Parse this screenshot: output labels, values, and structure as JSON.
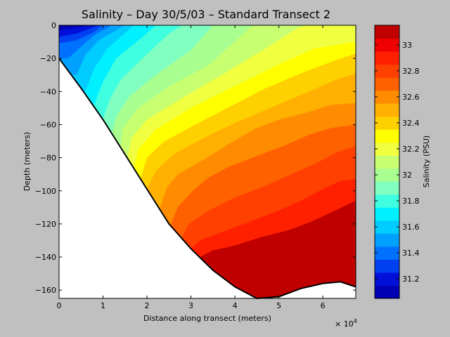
{
  "chart_data": {
    "type": "heatmap",
    "subtype": "filled-contour",
    "title": "Salinity – Day 30/5/03 – Standard Transect 2",
    "xlabel": "Distance along transect (meters)",
    "ylabel": "Depth (meters)",
    "x_multiplier": "× 10",
    "x_multiplier_exp": "4",
    "xlim": [
      0,
      6.75
    ],
    "ylim": [
      -165,
      0
    ],
    "x_ticks": [
      "0",
      "1",
      "2",
      "3",
      "4",
      "5",
      "6"
    ],
    "y_ticks": [
      "0",
      "−20",
      "−40",
      "−60",
      "−80",
      "−100",
      "−120",
      "−140",
      "−160"
    ],
    "colorbar": {
      "label": "Salinity (PSU)",
      "range": [
        31.05,
        33.15
      ],
      "tick_labels": [
        "31.2",
        "31.4",
        "31.6",
        "31.8",
        "32",
        "32.2",
        "32.4",
        "32.6",
        "32.8",
        "33"
      ],
      "levels": [
        31.05,
        31.15,
        31.25,
        31.35,
        31.45,
        31.55,
        31.65,
        31.75,
        31.85,
        31.95,
        32.05,
        32.15,
        32.25,
        32.35,
        32.45,
        32.55,
        32.65,
        32.75,
        32.85,
        32.95,
        33.05,
        33.15
      ],
      "colors": [
        "#0000b4",
        "#0010d8",
        "#0040f0",
        "#0070ff",
        "#00a0ff",
        "#00ccff",
        "#00f0ff",
        "#40ffe0",
        "#80ffc0",
        "#a8ff90",
        "#c8ff70",
        "#f0ff40",
        "#ffff00",
        "#ffd000",
        "#ffb000",
        "#ff8c00",
        "#ff6000",
        "#ff4000",
        "#ff2000",
        "#f00000",
        "#c00000"
      ]
    },
    "bottom_profile": [
      {
        "x": 0,
        "y": -20
      },
      {
        "x": 0.5,
        "y": -38
      },
      {
        "x": 1.0,
        "y": -57
      },
      {
        "x": 1.5,
        "y": -78
      },
      {
        "x": 2.0,
        "y": -99
      },
      {
        "x": 2.5,
        "y": -120
      },
      {
        "x": 3.0,
        "y": -135
      },
      {
        "x": 3.5,
        "y": -148
      },
      {
        "x": 4.0,
        "y": -158
      },
      {
        "x": 4.5,
        "y": -165
      },
      {
        "x": 5.0,
        "y": -164
      },
      {
        "x": 5.5,
        "y": -159
      },
      {
        "x": 6.0,
        "y": -156
      },
      {
        "x": 6.4,
        "y": -155
      },
      {
        "x": 6.75,
        "y": -158
      }
    ],
    "contour_lines": [
      {
        "level": 31.15,
        "points": [
          {
            "x": 0,
            "y": -3
          },
          {
            "x": 0.5,
            "y": -1
          },
          {
            "x": 0.7,
            "y": 0
          }
        ]
      },
      {
        "level": 31.25,
        "points": [
          {
            "x": 0,
            "y": -7
          },
          {
            "x": 0.4,
            "y": -5
          },
          {
            "x": 0.9,
            "y": 0
          }
        ]
      },
      {
        "level": 31.35,
        "points": [
          {
            "x": 0,
            "y": -11
          },
          {
            "x": 0.4,
            "y": -9
          },
          {
            "x": 0.8,
            "y": -4
          },
          {
            "x": 1.0,
            "y": 0
          }
        ]
      },
      {
        "level": 31.45,
        "points": [
          {
            "x": 0.2,
            "y": -20
          },
          {
            "x": 0.5,
            "y": -13
          },
          {
            "x": 0.8,
            "y": -6
          },
          {
            "x": 1.2,
            "y": 0
          }
        ]
      },
      {
        "level": 31.55,
        "points": [
          {
            "x": 0.4,
            "y": -30
          },
          {
            "x": 0.6,
            "y": -18
          },
          {
            "x": 0.9,
            "y": -9
          },
          {
            "x": 1.5,
            "y": 0
          }
        ]
      },
      {
        "level": 31.65,
        "points": [
          {
            "x": 0.6,
            "y": -40
          },
          {
            "x": 0.8,
            "y": -26
          },
          {
            "x": 1.1,
            "y": -14
          },
          {
            "x": 1.7,
            "y": 0
          }
        ]
      },
      {
        "level": 31.75,
        "points": [
          {
            "x": 0.8,
            "y": -48
          },
          {
            "x": 1.0,
            "y": -34
          },
          {
            "x": 1.3,
            "y": -20
          },
          {
            "x": 1.9,
            "y": -7
          },
          {
            "x": 2.2,
            "y": 0
          }
        ]
      },
      {
        "level": 31.85,
        "points": [
          {
            "x": 1.0,
            "y": -57
          },
          {
            "x": 1.15,
            "y": -45
          },
          {
            "x": 1.4,
            "y": -33
          },
          {
            "x": 1.9,
            "y": -20
          },
          {
            "x": 2.5,
            "y": -5
          },
          {
            "x": 2.8,
            "y": 0
          }
        ]
      },
      {
        "level": 31.95,
        "points": [
          {
            "x": 1.2,
            "y": -66
          },
          {
            "x": 1.3,
            "y": -55
          },
          {
            "x": 1.6,
            "y": -43
          },
          {
            "x": 2.2,
            "y": -30
          },
          {
            "x": 3.0,
            "y": -15
          },
          {
            "x": 3.5,
            "y": 0
          }
        ]
      },
      {
        "level": 32.05,
        "points": [
          {
            "x": 1.4,
            "y": -74
          },
          {
            "x": 1.45,
            "y": -62
          },
          {
            "x": 1.8,
            "y": -50
          },
          {
            "x": 2.5,
            "y": -37
          },
          {
            "x": 3.4,
            "y": -24
          },
          {
            "x": 4.2,
            "y": -5
          },
          {
            "x": 4.4,
            "y": 0
          }
        ]
      },
      {
        "level": 32.15,
        "points": [
          {
            "x": 1.55,
            "y": -81
          },
          {
            "x": 1.65,
            "y": -68
          },
          {
            "x": 2.0,
            "y": -57
          },
          {
            "x": 2.8,
            "y": -44
          },
          {
            "x": 3.7,
            "y": -30
          },
          {
            "x": 4.7,
            "y": -14
          },
          {
            "x": 5.4,
            "y": -2
          },
          {
            "x": 5.6,
            "y": 0
          }
        ]
      },
      {
        "level": 32.25,
        "points": [
          {
            "x": 1.7,
            "y": -87
          },
          {
            "x": 1.8,
            "y": -75
          },
          {
            "x": 2.2,
            "y": -63
          },
          {
            "x": 3.0,
            "y": -50
          },
          {
            "x": 3.9,
            "y": -38
          },
          {
            "x": 4.9,
            "y": -25
          },
          {
            "x": 5.8,
            "y": -14
          },
          {
            "x": 6.75,
            "y": -10
          }
        ]
      },
      {
        "level": 32.35,
        "points": [
          {
            "x": 1.85,
            "y": -93
          },
          {
            "x": 2.0,
            "y": -80
          },
          {
            "x": 2.4,
            "y": -70
          },
          {
            "x": 3.1,
            "y": -60
          },
          {
            "x": 3.9,
            "y": -49
          },
          {
            "x": 4.7,
            "y": -38
          },
          {
            "x": 5.6,
            "y": -28
          },
          {
            "x": 6.2,
            "y": -22
          },
          {
            "x": 6.75,
            "y": -17
          }
        ]
      },
      {
        "level": 32.45,
        "points": [
          {
            "x": 2.0,
            "y": -99
          },
          {
            "x": 2.2,
            "y": -88
          },
          {
            "x": 2.6,
            "y": -78
          },
          {
            "x": 3.3,
            "y": -68
          },
          {
            "x": 4.0,
            "y": -59
          },
          {
            "x": 4.8,
            "y": -50
          },
          {
            "x": 5.6,
            "y": -41
          },
          {
            "x": 6.3,
            "y": -33
          },
          {
            "x": 6.75,
            "y": -29
          }
        ]
      },
      {
        "level": 32.55,
        "points": [
          {
            "x": 2.3,
            "y": -110
          },
          {
            "x": 2.45,
            "y": -98
          },
          {
            "x": 2.7,
            "y": -90
          },
          {
            "x": 3.3,
            "y": -81
          },
          {
            "x": 3.9,
            "y": -71
          },
          {
            "x": 4.5,
            "y": -62
          },
          {
            "x": 5.0,
            "y": -57
          },
          {
            "x": 5.6,
            "y": -53
          },
          {
            "x": 6.2,
            "y": -48
          },
          {
            "x": 6.75,
            "y": -47
          }
        ]
      },
      {
        "level": 32.65,
        "points": [
          {
            "x": 2.55,
            "y": -120
          },
          {
            "x": 2.7,
            "y": -110
          },
          {
            "x": 3.0,
            "y": -101
          },
          {
            "x": 3.4,
            "y": -92
          },
          {
            "x": 3.9,
            "y": -85
          },
          {
            "x": 4.5,
            "y": -79
          },
          {
            "x": 5.1,
            "y": -73
          },
          {
            "x": 5.7,
            "y": -66
          },
          {
            "x": 6.2,
            "y": -62
          },
          {
            "x": 6.75,
            "y": -60
          }
        ]
      },
      {
        "level": 32.75,
        "points": [
          {
            "x": 2.8,
            "y": -128
          },
          {
            "x": 2.95,
            "y": -120
          },
          {
            "x": 3.4,
            "y": -112
          },
          {
            "x": 4.0,
            "y": -104
          },
          {
            "x": 4.6,
            "y": -98
          },
          {
            "x": 5.2,
            "y": -91
          },
          {
            "x": 5.8,
            "y": -84
          },
          {
            "x": 6.3,
            "y": -77
          },
          {
            "x": 6.75,
            "y": -73
          }
        ]
      },
      {
        "level": 32.85,
        "points": [
          {
            "x": 3.0,
            "y": -135
          },
          {
            "x": 3.2,
            "y": -130
          },
          {
            "x": 3.7,
            "y": -125
          },
          {
            "x": 4.3,
            "y": -119
          },
          {
            "x": 4.9,
            "y": -113
          },
          {
            "x": 5.5,
            "y": -106
          },
          {
            "x": 6.0,
            "y": -99
          },
          {
            "x": 6.4,
            "y": -94
          },
          {
            "x": 6.75,
            "y": -93
          }
        ]
      },
      {
        "level": 32.95,
        "points": [
          {
            "x": 3.2,
            "y": -140
          },
          {
            "x": 3.5,
            "y": -136
          },
          {
            "x": 4.0,
            "y": -133
          },
          {
            "x": 4.6,
            "y": -128
          },
          {
            "x": 5.2,
            "y": -124
          },
          {
            "x": 5.7,
            "y": -119
          },
          {
            "x": 6.2,
            "y": -113
          },
          {
            "x": 6.75,
            "y": -106
          }
        ]
      }
    ]
  }
}
